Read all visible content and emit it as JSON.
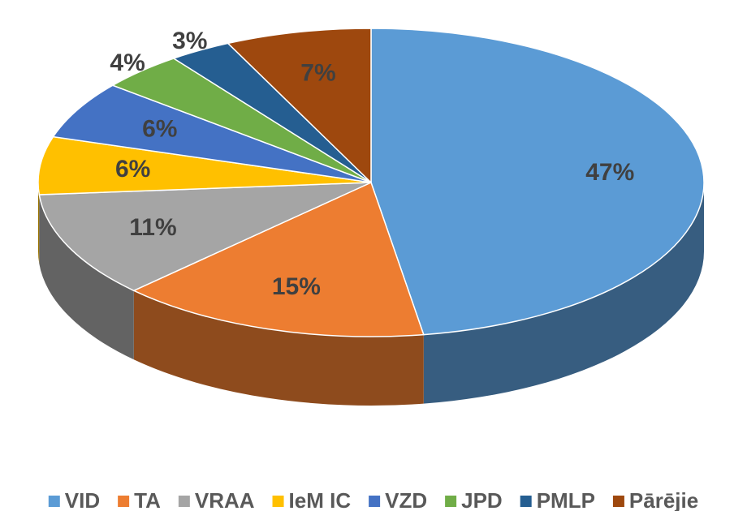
{
  "chart_data": {
    "type": "pie",
    "categories": [
      "VID",
      "TA",
      "VRAA",
      "IeM IC",
      "VZD",
      "JPD",
      "PMLP",
      "Pārējie"
    ],
    "values": [
      47,
      15,
      11,
      6,
      6,
      4,
      3,
      7
    ],
    "value_labels": [
      "47%",
      "15%",
      "11%",
      "6%",
      "6%",
      "4%",
      "3%",
      "7%"
    ],
    "colors": [
      "#5b9bd5",
      "#ed7d31",
      "#a5a5a5",
      "#ffc000",
      "#4472c4",
      "#70ad47",
      "#255e91",
      "#9e480e"
    ],
    "legend": "bottom"
  }
}
